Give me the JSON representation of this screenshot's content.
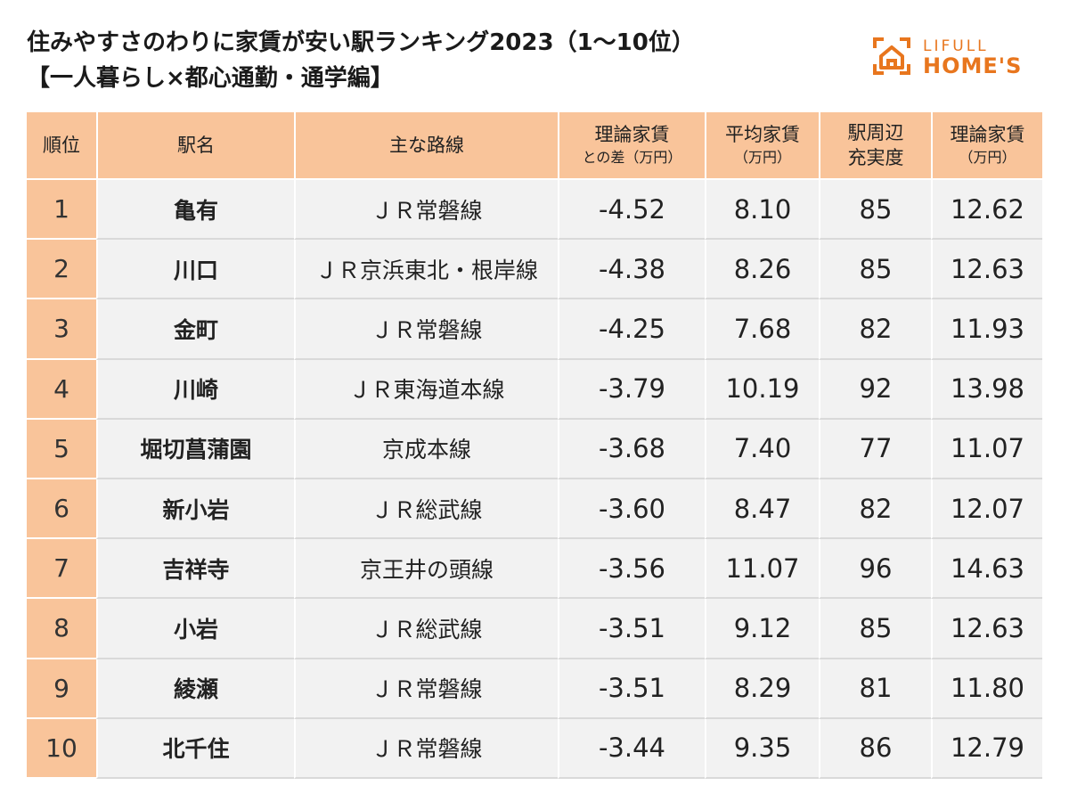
{
  "title": {
    "line1": "住みやすさのわりに家賃が安い駅ランキング2023（1〜10位）",
    "line2": "【一人暮らし×都心通勤・通学編】"
  },
  "logo": {
    "top": "LIFULL",
    "bottom": "HOME'S",
    "icon": "house-icon",
    "color": "#e8761e"
  },
  "colors": {
    "header_bg": "#f9c49a",
    "row_bg": "#f2f2f2"
  },
  "table": {
    "headers": [
      {
        "line1": "順位",
        "line2": ""
      },
      {
        "line1": "駅名",
        "line2": ""
      },
      {
        "line1": "主な路線",
        "line2": ""
      },
      {
        "line1": "理論家賃",
        "line2": "との差（万円）"
      },
      {
        "line1": "平均家賃",
        "line2": "（万円）"
      },
      {
        "line1": "駅周辺",
        "line2": "充実度"
      },
      {
        "line1": "理論家賃",
        "line2": "（万円）"
      }
    ],
    "rows": [
      {
        "rank": "1",
        "station": "亀有",
        "line": "ＪＲ常磐線",
        "diff": "-4.52",
        "avg": "8.10",
        "score": "85",
        "theory": "12.62"
      },
      {
        "rank": "2",
        "station": "川口",
        "line": "ＪＲ京浜東北・根岸線",
        "diff": "-4.38",
        "avg": "8.26",
        "score": "85",
        "theory": "12.63"
      },
      {
        "rank": "3",
        "station": "金町",
        "line": "ＪＲ常磐線",
        "diff": "-4.25",
        "avg": "7.68",
        "score": "82",
        "theory": "11.93"
      },
      {
        "rank": "4",
        "station": "川崎",
        "line": "ＪＲ東海道本線",
        "diff": "-3.79",
        "avg": "10.19",
        "score": "92",
        "theory": "13.98"
      },
      {
        "rank": "5",
        "station": "堀切菖蒲園",
        "line": "京成本線",
        "diff": "-3.68",
        "avg": "7.40",
        "score": "77",
        "theory": "11.07"
      },
      {
        "rank": "6",
        "station": "新小岩",
        "line": "ＪＲ総武線",
        "diff": "-3.60",
        "avg": "8.47",
        "score": "82",
        "theory": "12.07"
      },
      {
        "rank": "7",
        "station": "吉祥寺",
        "line": "京王井の頭線",
        "diff": "-3.56",
        "avg": "11.07",
        "score": "96",
        "theory": "14.63"
      },
      {
        "rank": "8",
        "station": "小岩",
        "line": "ＪＲ総武線",
        "diff": "-3.51",
        "avg": "9.12",
        "score": "85",
        "theory": "12.63"
      },
      {
        "rank": "9",
        "station": "綾瀬",
        "line": "ＪＲ常磐線",
        "diff": "-3.51",
        "avg": "8.29",
        "score": "81",
        "theory": "11.80"
      },
      {
        "rank": "10",
        "station": "北千住",
        "line": "ＪＲ常磐線",
        "diff": "-3.44",
        "avg": "9.35",
        "score": "86",
        "theory": "12.79"
      }
    ]
  }
}
